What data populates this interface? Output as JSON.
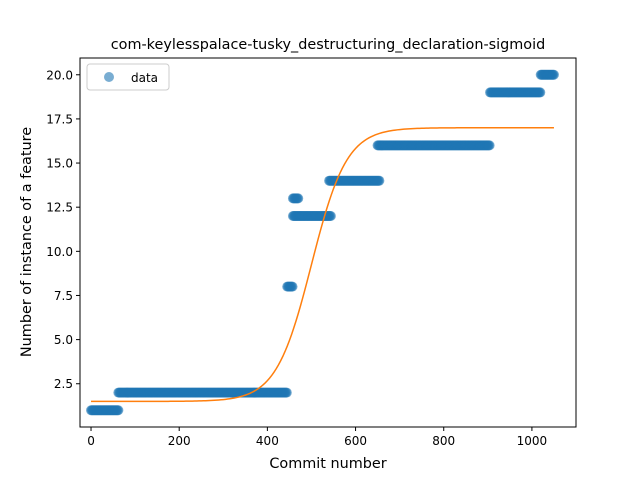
{
  "chart_data": {
    "type": "scatter",
    "title": "com-keylesspalace-tusky_destructuring_declaration-sigmoid",
    "xlabel": "Commit number",
    "ylabel": "Number of instance of a feature",
    "xlim": [
      -25,
      1100
    ],
    "ylim": [
      0.05,
      20.95
    ],
    "xticks": [
      0,
      200,
      400,
      600,
      800,
      1000
    ],
    "yticks": [
      2.5,
      5.0,
      7.5,
      10.0,
      12.5,
      15.0,
      17.5,
      20.0
    ],
    "xtick_labels": [
      "0",
      "200",
      "400",
      "600",
      "800",
      "1000"
    ],
    "ytick_labels": [
      "2.5",
      "5.0",
      "7.5",
      "10.0",
      "12.5",
      "15.0",
      "17.5",
      "20.0"
    ],
    "grid": false,
    "legend": {
      "placement": "top-left",
      "entries": [
        "data"
      ]
    },
    "series": [
      {
        "name": "data",
        "kind": "scatter",
        "color": "#1f77b4",
        "segments": [
          {
            "x_start": 0,
            "x_end": 62,
            "y": 1
          },
          {
            "x_start": 62,
            "x_end": 445,
            "y": 2
          },
          {
            "x_start": 445,
            "x_end": 458,
            "y": 8
          },
          {
            "x_start": 458,
            "x_end": 470,
            "y": 13
          },
          {
            "x_start": 458,
            "x_end": 545,
            "y": 12
          },
          {
            "x_start": 540,
            "x_end": 655,
            "y": 14
          },
          {
            "x_start": 650,
            "x_end": 905,
            "y": 16
          },
          {
            "x_start": 905,
            "x_end": 1020,
            "y": 19
          },
          {
            "x_start": 1020,
            "x_end": 1050,
            "y": 20
          }
        ]
      },
      {
        "kind": "line",
        "color": "#ff7f0e",
        "sigmoid": {
          "lower": 1.5,
          "upper": 17.0,
          "midpoint": 500,
          "rate": 0.025
        },
        "x_range": [
          0,
          1050
        ]
      }
    ]
  }
}
